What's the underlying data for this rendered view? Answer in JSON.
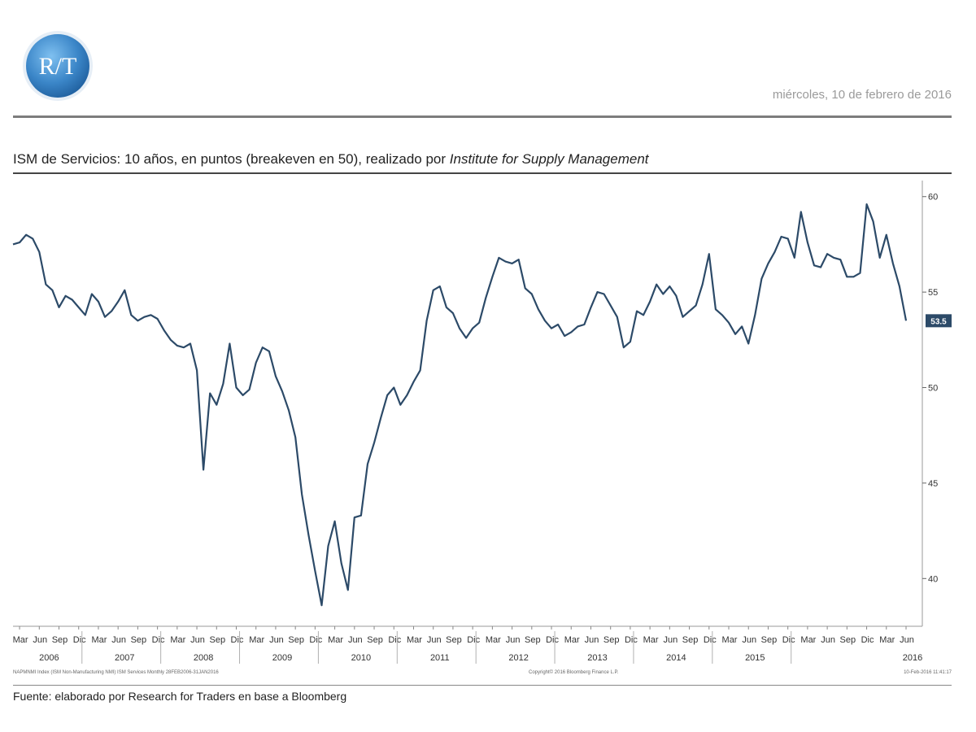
{
  "header": {
    "logo_text": "R/T",
    "date": "miércoles, 10 de febrero de 2016",
    "brand_color": "#3b86c8"
  },
  "title": {
    "main": "ISM de Servicios: 10 años, en puntos (breakeven en 50), realizado por ",
    "italic": "Institute for Supply Management"
  },
  "footer": {
    "source": "Fuente: elaborado por Research for Traders en base a Bloomberg",
    "fine_left": "NAPMNMI Index (ISM Non-Manufacturing NMI) ISM Services  Monthly 28FEB2006-31JAN2016",
    "fine_center": "Copyright© 2016 Bloomberg Finance L.P.",
    "fine_right": "10-Feb-2016 11:41:17"
  },
  "chart_data": {
    "type": "line",
    "title": "",
    "xlabel": "",
    "ylabel": "",
    "ylim": [
      37.5,
      60.5
    ],
    "y_ticks": [
      40,
      45,
      50,
      55,
      60
    ],
    "y_tick_labels": [
      "40",
      "45",
      "50",
      "55",
      "60"
    ],
    "month_labels": [
      "Mar",
      "Jun",
      "Sep",
      "Dic"
    ],
    "year_labels": [
      "2006",
      "2007",
      "2008",
      "2009",
      "2010",
      "2011",
      "2012",
      "2013",
      "2014",
      "2015",
      "2016"
    ],
    "last_value_label": "53.5",
    "line_color": "#2c4a68",
    "badge_color": "#2c4a68",
    "series": [
      {
        "values": [
          57.5,
          57.6,
          58.0,
          57.8,
          57.1,
          55.4,
          55.1,
          54.2,
          54.8,
          54.6,
          54.2,
          53.8,
          54.9,
          54.5,
          53.7,
          54.0,
          54.5,
          55.1,
          53.8,
          53.5,
          53.7,
          53.8,
          53.6,
          53.0,
          52.5,
          52.2,
          52.1,
          52.3,
          50.9,
          45.7,
          49.7,
          49.1,
          50.2,
          52.3,
          50.0,
          49.6,
          49.9,
          51.3,
          52.1,
          51.9,
          50.6,
          49.8,
          48.8,
          47.4,
          44.4,
          42.3,
          40.4,
          38.6,
          41.7,
          43.0,
          40.8,
          39.4,
          43.2,
          43.3,
          46.0,
          47.1,
          48.4,
          49.6,
          50.0,
          49.1,
          49.6,
          50.3,
          50.9,
          53.5,
          55.1,
          55.3,
          54.2,
          53.9,
          53.1,
          52.6,
          53.1,
          53.4,
          54.7,
          55.8,
          56.8,
          56.6,
          56.5,
          56.7,
          55.2,
          54.9,
          54.1,
          53.5,
          53.1,
          53.3,
          52.7,
          52.9,
          53.2,
          53.3,
          54.2,
          55.0,
          54.9,
          54.3,
          53.7,
          52.1,
          52.4,
          54.0,
          53.8,
          54.5,
          55.4,
          54.9,
          55.3,
          54.8,
          53.7,
          54.0,
          54.3,
          55.4,
          57.0,
          54.1,
          53.8,
          53.4,
          52.8,
          53.2,
          52.3,
          53.8,
          55.7,
          56.5,
          57.1,
          57.9,
          57.8,
          56.8,
          59.2,
          57.6,
          56.4,
          56.3,
          57.0,
          56.8,
          56.7,
          55.8,
          55.8,
          56.0,
          59.6,
          58.7,
          56.8,
          58.0,
          56.5,
          55.3,
          53.5
        ]
      }
    ]
  }
}
